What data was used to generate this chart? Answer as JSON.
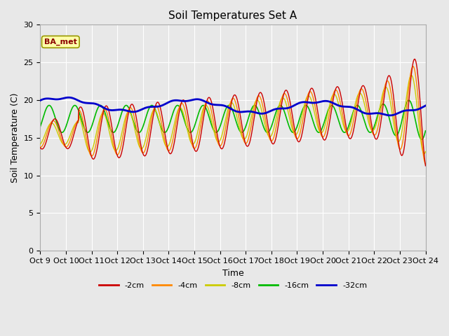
{
  "title": "Soil Temperatures Set A",
  "xlabel": "Time",
  "ylabel": "Soil Temperature (C)",
  "ylim": [
    0,
    30
  ],
  "yticks": [
    0,
    5,
    10,
    15,
    20,
    25,
    30
  ],
  "annotation": "BA_met",
  "plot_bg_color": "#e8e8e8",
  "fig_bg_color": "#e8e8e8",
  "line_colors": {
    "-2cm": "#cc0000",
    "-4cm": "#ff8800",
    "-8cm": "#cccc00",
    "-16cm": "#00bb00",
    "-32cm": "#0000cc"
  },
  "legend_labels": [
    "-2cm",
    "-4cm",
    "-8cm",
    "-16cm",
    "-32cm"
  ],
  "x_tick_labels": [
    "Oct 9",
    "Oct 10",
    "Oct 11",
    "Oct 12",
    "Oct 13",
    "Oct 14",
    "Oct 15",
    "Oct 16",
    "Oct 17",
    "Oct 18",
    "Oct 19",
    "Oct 20",
    "Oct 21",
    "Oct 22",
    "Oct 23",
    "Oct 24"
  ],
  "n_days": 15
}
